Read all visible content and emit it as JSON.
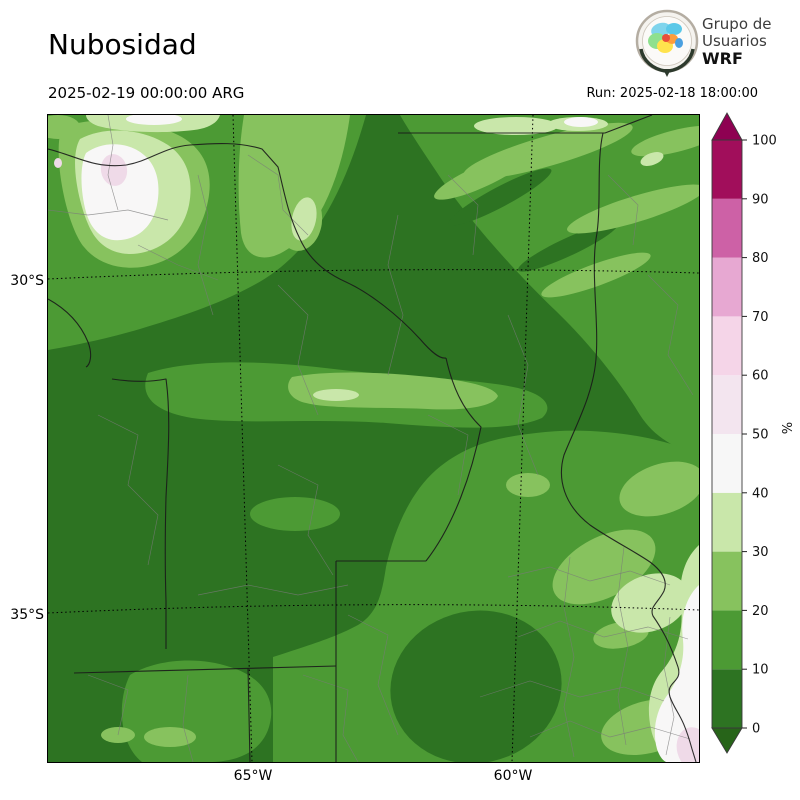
{
  "header": {
    "title": "Nubosidad",
    "valid_time": "2025-02-19 00:00:00 ARG",
    "run_label": "Run: 2025-02-18 18:00:00",
    "logo": {
      "line1": "Grupo de",
      "line2": "Usuarios",
      "line3": "WRF"
    }
  },
  "map": {
    "lat_labels": [
      "30°S",
      "35°S"
    ],
    "lon_labels": [
      "65°W",
      "60°W"
    ]
  },
  "colorbar": {
    "unit": "%",
    "ticks": [
      "0",
      "10",
      "20",
      "30",
      "40",
      "50",
      "60",
      "70",
      "80",
      "90",
      "100"
    ],
    "segment_colors": [
      "#2d7322",
      "#4c9a34",
      "#87c25e",
      "#c9e7aa",
      "#f7f7f7",
      "#f3e5ef",
      "#f5d5e8",
      "#e7a8d2",
      "#cd61a6",
      "#a10e5b"
    ],
    "over_color": "#8e0152",
    "under_color": "#276419"
  },
  "chart_data": {
    "type": "heatmap",
    "title": "Nubosidad",
    "units": "%",
    "valid_time": "2025-02-19 00:00:00 ARG",
    "run": "2025-02-18 18:00:00",
    "colorbar_levels": [
      0,
      10,
      20,
      30,
      40,
      50,
      60,
      70,
      80,
      90,
      100
    ],
    "colorbar_extends": "both",
    "lat_ticks": [
      "30°S",
      "35°S"
    ],
    "lon_ticks": [
      "65°W",
      "60°W"
    ],
    "field_summary": "Cloud cover mostly 0-20% (dark greens); 20-50% patches NW quadrant, top-right diagonal bands, central E-W band and SE near river; small 50-60% maxima NW of 30°S and at SE corner"
  }
}
